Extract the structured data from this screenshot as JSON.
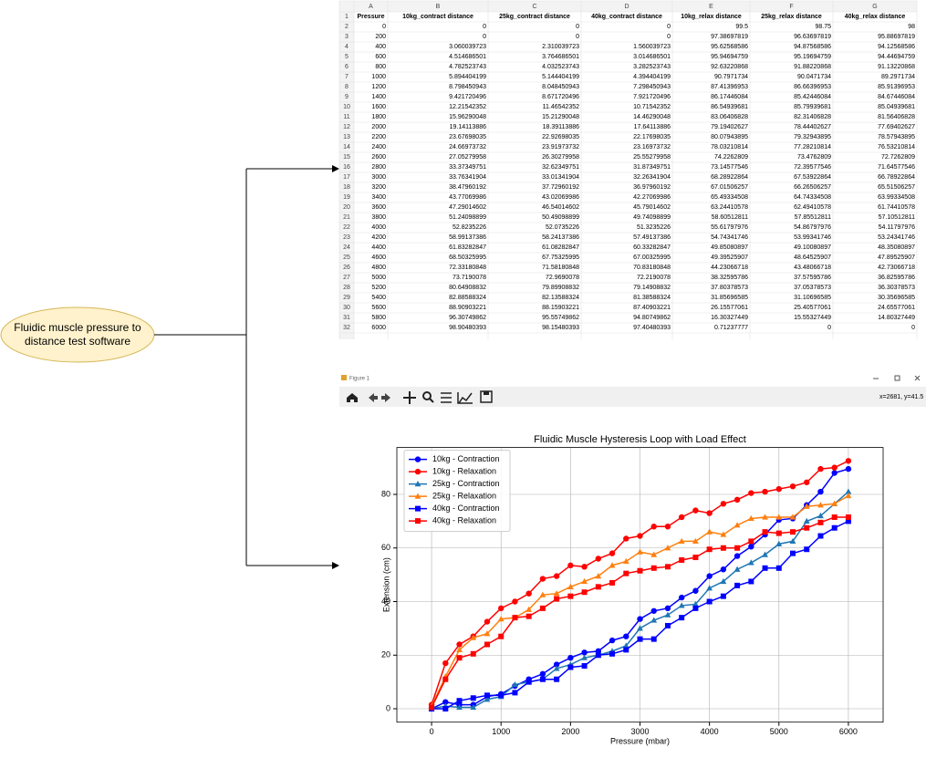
{
  "diagram": {
    "source_label": "Fluidic muscle pressure to distance test software"
  },
  "spreadsheet": {
    "column_letters": [
      "A",
      "B",
      "C",
      "D",
      "E",
      "F",
      "G"
    ],
    "row_numbers": [
      1,
      2,
      3,
      4,
      5,
      6,
      7,
      8,
      9,
      10,
      11,
      12,
      13,
      14,
      15,
      16,
      17,
      18,
      19,
      20,
      21,
      22,
      23,
      24,
      25,
      26,
      27,
      28,
      29,
      30,
      31,
      32
    ],
    "headers": [
      "Pressure",
      "10kg_contract distance",
      "25kg_contract distance",
      "40kg_contract distance",
      "10kg_relax distance",
      "25kg_relax distance",
      "40kg_relax distance"
    ],
    "rows": [
      [
        0,
        0,
        0,
        0,
        99.5,
        98.75,
        98
      ],
      [
        200,
        0,
        0,
        0,
        97.38697819,
        96.63697819,
        95.88697819
      ],
      [
        400,
        3.060039723,
        2.310039723,
        1.560039723,
        95.62568586,
        94.87568586,
        94.12568586
      ],
      [
        600,
        4.514686501,
        3.764686501,
        3.014686501,
        95.94694759,
        95.19694759,
        94.44694759
      ],
      [
        800,
        4.782523743,
        4.032523743,
        3.282523743,
        92.63220868,
        91.88220868,
        91.13220868
      ],
      [
        1000,
        5.894404199,
        5.144404199,
        4.394404199,
        90.7971734,
        90.0471734,
        89.2971734
      ],
      [
        1200,
        8.798450943,
        8.048450943,
        7.298450943,
        87.41396953,
        86.66396953,
        85.91396953
      ],
      [
        1400,
        9.421720496,
        8.671720496,
        7.921720496,
        86.17446084,
        85.42446084,
        84.67446084
      ],
      [
        1600,
        12.21542352,
        11.46542352,
        10.71542352,
        86.54939681,
        85.79939681,
        85.04939681
      ],
      [
        1800,
        15.96290048,
        15.21290048,
        14.46290048,
        83.06406828,
        82.31406828,
        81.56406828
      ],
      [
        2000,
        19.14113886,
        18.39113886,
        17.64113886,
        79.19402627,
        78.44402627,
        77.69402627
      ],
      [
        2200,
        23.67698035,
        22.92698035,
        22.17698035,
        80.07943895,
        79.32943895,
        78.57943895
      ],
      [
        2400,
        24.66973732,
        23.91973732,
        23.16973732,
        78.03210814,
        77.28210814,
        76.53210814
      ],
      [
        2600,
        27.05279958,
        26.30279958,
        25.55279958,
        74.2262809,
        73.4762809,
        72.7262809
      ],
      [
        2800,
        33.37349751,
        32.62349751,
        31.87349751,
        73.14577546,
        72.39577546,
        71.64577546
      ],
      [
        3000,
        33.76341904,
        33.01341904,
        32.26341904,
        68.28922864,
        67.53922864,
        66.78922864
      ],
      [
        3200,
        38.47960192,
        37.72960192,
        36.97960192,
        67.01506257,
        66.26506257,
        65.51506257
      ],
      [
        3400,
        43.77069986,
        43.02069986,
        42.27069986,
        65.49334508,
        64.74334508,
        63.99334508
      ],
      [
        3600,
        47.29014602,
        46.54014602,
        45.79014602,
        63.24410578,
        62.49410578,
        61.74410578
      ],
      [
        3800,
        51.24098899,
        50.49098899,
        49.74098899,
        58.60512811,
        57.85512811,
        57.10512811
      ],
      [
        4000,
        52.8235226,
        52.0735226,
        51.3235226,
        55.61797976,
        54.86797976,
        54.11797976
      ],
      [
        4200,
        58.99137386,
        58.24137386,
        57.49137386,
        54.74341746,
        53.99341746,
        53.24341746
      ],
      [
        4400,
        61.83282847,
        61.08282847,
        60.33282847,
        49.85080897,
        49.10080897,
        48.35080897
      ],
      [
        4600,
        68.50325995,
        67.75325995,
        67.00325995,
        49.39525907,
        48.64525907,
        47.89525907
      ],
      [
        4800,
        72.33180848,
        71.58180848,
        70.83180848,
        44.23066718,
        43.48066718,
        42.73066718
      ],
      [
        5000,
        73.7190078,
        72.9690078,
        72.2190078,
        38.32595786,
        37.57595786,
        36.82595786
      ],
      [
        5200,
        80.64908832,
        79.89908832,
        79.14908832,
        37.80378573,
        37.05378573,
        36.30378573
      ],
      [
        5400,
        82.88588324,
        82.13588324,
        81.38588324,
        31.85696585,
        31.10696585,
        30.35696585
      ],
      [
        5600,
        88.90903221,
        88.15903221,
        87.40903221,
        26.15577061,
        25.40577061,
        24.65577061
      ],
      [
        5800,
        96.30749862,
        95.55749862,
        94.80749862,
        16.30327449,
        15.55327449,
        14.80327449
      ],
      [
        6000,
        98.90480393,
        98.15480393,
        97.40480393,
        0.71237777,
        0,
        0
      ]
    ]
  },
  "figure_window": {
    "title": "Figure 1",
    "status": "x=2681, y=41.5"
  },
  "chart_data": {
    "type": "line",
    "title": "Fluidic Muscle Hysteresis Loop with Load Effect",
    "x_label": "Pressure (mbar)",
    "y_label": "Extension (cm)",
    "x": [
      0,
      200,
      400,
      600,
      800,
      1000,
      1200,
      1400,
      1600,
      1800,
      2000,
      2200,
      2400,
      2600,
      2800,
      3000,
      3200,
      3400,
      3600,
      3800,
      4000,
      4200,
      4400,
      4600,
      4800,
      5000,
      5200,
      5400,
      5600,
      5800,
      6000
    ],
    "xlim": [
      -500,
      6500
    ],
    "xticks": [
      0,
      1000,
      2000,
      3000,
      4000,
      5000,
      6000
    ],
    "ylim": [
      -5,
      97.5
    ],
    "yticks": [
      0,
      20,
      40,
      60,
      80
    ],
    "grid": true,
    "legend": "upper-left",
    "series": [
      {
        "name": "10kg - Contraction",
        "color": "#0000ff",
        "marker": "circle",
        "values": [
          0,
          2.5,
          1.5,
          1.5,
          4.5,
          5.5,
          8.5,
          11,
          13,
          16.5,
          19,
          21,
          21.5,
          25.5,
          27,
          33.5,
          36.5,
          37.5,
          41.5,
          44,
          49.5,
          52,
          57,
          60.5,
          65,
          70.5,
          71,
          76,
          81,
          88,
          89.5
        ]
      },
      {
        "name": "10kg - Relaxation",
        "color": "#ff0000",
        "marker": "circle",
        "values": [
          1.5,
          17,
          24,
          27,
          32.5,
          37.5,
          40,
          43,
          48.5,
          49.5,
          53.5,
          53,
          56,
          58,
          63.5,
          64.5,
          68,
          68,
          71.5,
          74,
          73,
          76.5,
          78,
          80.5,
          81,
          82,
          83,
          84.5,
          89.5,
          90,
          92.5
        ]
      },
      {
        "name": "25kg - Contraction",
        "color": "#1f77b4",
        "marker": "triangle",
        "values": [
          0,
          1,
          0.5,
          0.5,
          3.5,
          4.5,
          9,
          10,
          11,
          15,
          16.5,
          19,
          20,
          21.5,
          23.5,
          30,
          33,
          35,
          38.5,
          39,
          45,
          47.5,
          52,
          54.5,
          57.5,
          61.5,
          62.5,
          70,
          72,
          76.5,
          81
        ]
      },
      {
        "name": "25kg - Relaxation",
        "color": "#ff7f0e",
        "marker": "triangle",
        "values": [
          1,
          12,
          22,
          26.5,
          28,
          33.5,
          34,
          37,
          42.5,
          43,
          45.5,
          47.5,
          49.5,
          53.5,
          55,
          58.5,
          57.5,
          60,
          62.5,
          62.5,
          66,
          65,
          68.5,
          71,
          71.5,
          71.5,
          71.5,
          75.5,
          76,
          76.5,
          79.5
        ]
      },
      {
        "name": "40kg - Contraction",
        "color": "#0000ff",
        "marker": "square",
        "values": [
          0,
          0,
          3,
          4,
          5,
          5,
          6,
          10,
          11,
          11,
          15.5,
          16,
          20,
          20.5,
          22,
          26,
          26,
          31,
          34,
          37.5,
          40,
          42,
          46,
          47.5,
          52.5,
          52.5,
          58,
          59.5,
          64.5,
          67.5,
          70
        ]
      },
      {
        "name": "40kg - Relaxation",
        "color": "#ff0000",
        "marker": "square",
        "values": [
          0.5,
          11,
          19,
          20.5,
          24,
          27,
          34,
          34.5,
          37.5,
          41,
          42,
          43.5,
          45.5,
          47,
          50.5,
          51.5,
          52.5,
          53,
          55.5,
          56.5,
          59.5,
          60,
          60,
          62.5,
          66,
          65.5,
          66,
          67.5,
          69.5,
          71.5,
          71.5
        ]
      }
    ]
  }
}
